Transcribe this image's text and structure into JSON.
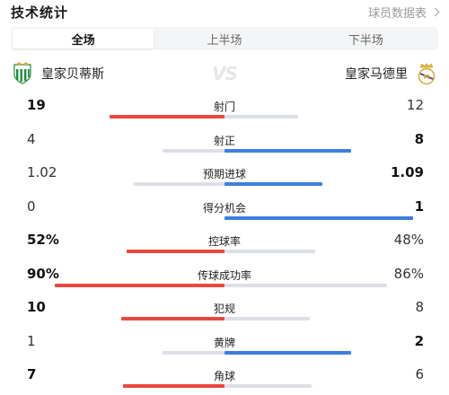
{
  "header": {
    "title": "技术统计",
    "more_label": "球员数据表"
  },
  "tabs": [
    {
      "label": "全场",
      "active": true
    },
    {
      "label": "上半场",
      "active": false
    },
    {
      "label": "下半场",
      "active": false
    }
  ],
  "teams": {
    "home": {
      "name": "皇家贝蒂斯",
      "logo_icon": "real-betis-crest"
    },
    "vs_label": "VS",
    "away": {
      "name": "皇家马德里",
      "logo_icon": "real-madrid-crest"
    }
  },
  "colors": {
    "home_strong": "#e8473f",
    "home_weak": "#dcdfe6",
    "away_strong": "#3c7fe0",
    "away_weak": "#dcdfe6"
  },
  "stats": [
    {
      "name": "射门",
      "home": "19",
      "away": "12",
      "home_share": 0.61,
      "away_share": 0.39
    },
    {
      "name": "射正",
      "home": "4",
      "away": "8",
      "home_share": 0.33,
      "away_share": 0.67
    },
    {
      "name": "预期进球",
      "home": "1.02",
      "away": "1.09",
      "home_share": 0.48,
      "away_share": 0.52
    },
    {
      "name": "得分机会",
      "home": "0",
      "away": "1",
      "home_share": 0.0,
      "away_share": 1.0
    },
    {
      "name": "控球率",
      "home": "52%",
      "away": "48%",
      "home_share": 0.52,
      "away_share": 0.48
    },
    {
      "name": "传球成功率",
      "home": "90%",
      "away": "86%",
      "home_share": 0.9,
      "away_share": 0.86
    },
    {
      "name": "犯规",
      "home": "10",
      "away": "8",
      "home_share": 0.55,
      "away_share": 0.45
    },
    {
      "name": "黄牌",
      "home": "1",
      "away": "2",
      "home_share": 0.33,
      "away_share": 0.67
    },
    {
      "name": "角球",
      "home": "7",
      "away": "6",
      "home_share": 0.54,
      "away_share": 0.46
    }
  ]
}
